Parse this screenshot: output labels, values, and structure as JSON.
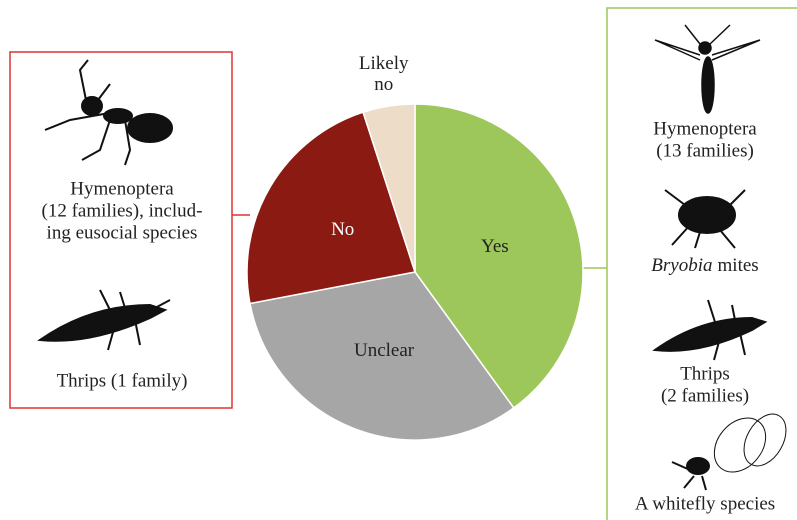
{
  "chart_data": {
    "type": "pie",
    "categories": [
      "Yes",
      "Unclear",
      "No",
      "Likely no"
    ],
    "values": [
      40,
      32,
      23,
      5
    ],
    "colors": [
      "#9dc75a",
      "#a6a6a6",
      "#8b1a12",
      "#eddcc8"
    ]
  },
  "left_panel": {
    "items": [
      {
        "lines": [
          "Hymenoptera",
          "(12 families), includ-",
          "ing eusocial species"
        ]
      },
      {
        "lines": [
          "Thrips (1 family)"
        ]
      }
    ]
  },
  "right_panel": {
    "items": [
      {
        "lines": [
          "Hymenoptera",
          "(13 families)"
        ]
      },
      {
        "italic": "Bryobia",
        "lines": [
          "mites"
        ]
      },
      {
        "lines": [
          "Thrips",
          "(2 families)"
        ]
      },
      {
        "lines": [
          "A whitefly species"
        ]
      }
    ]
  }
}
